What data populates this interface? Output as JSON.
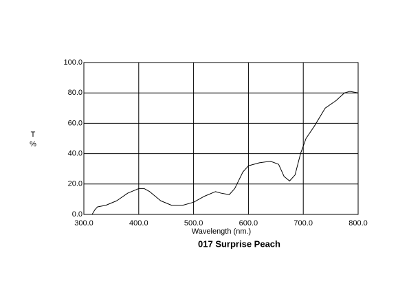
{
  "chart_data": {
    "type": "line",
    "title": "017 Surprise Peach",
    "xlabel": "Wavelength (nm.)",
    "ylabel": [
      "T",
      "%"
    ],
    "x": [
      315,
      320,
      325,
      340,
      360,
      380,
      400,
      410,
      420,
      440,
      460,
      480,
      500,
      520,
      540,
      550,
      565,
      575,
      590,
      600,
      620,
      640,
      655,
      665,
      675,
      685,
      695,
      705,
      720,
      740,
      760,
      775,
      785,
      800
    ],
    "series": [
      {
        "color": "#000000",
        "values": [
          0,
          3,
          5,
          6,
          9,
          14,
          17,
          17,
          15,
          9,
          6,
          6,
          8,
          12,
          15,
          14,
          13,
          17,
          28,
          32,
          34,
          35,
          33,
          25,
          22,
          26,
          40,
          50,
          58,
          70,
          75,
          80,
          81,
          80
        ]
      }
    ],
    "xlim": [
      300,
      800
    ],
    "ylim": [
      0,
      100
    ],
    "xticks": [
      {
        "value": 300,
        "label": "300.0"
      },
      {
        "value": 400,
        "label": "400.0"
      },
      {
        "value": 500,
        "label": "500.0"
      },
      {
        "value": 600,
        "label": "600.0"
      },
      {
        "value": 700,
        "label": "700.0"
      },
      {
        "value": 800,
        "label": "800.0"
      }
    ],
    "yticks": [
      {
        "value": 0,
        "label": "0.0"
      },
      {
        "value": 20,
        "label": "20.0"
      },
      {
        "value": 40,
        "label": "40.0"
      },
      {
        "value": 60,
        "label": "60.0"
      },
      {
        "value": 80,
        "label": "80.0"
      },
      {
        "value": 100,
        "label": "100.0"
      }
    ],
    "grid": true
  }
}
